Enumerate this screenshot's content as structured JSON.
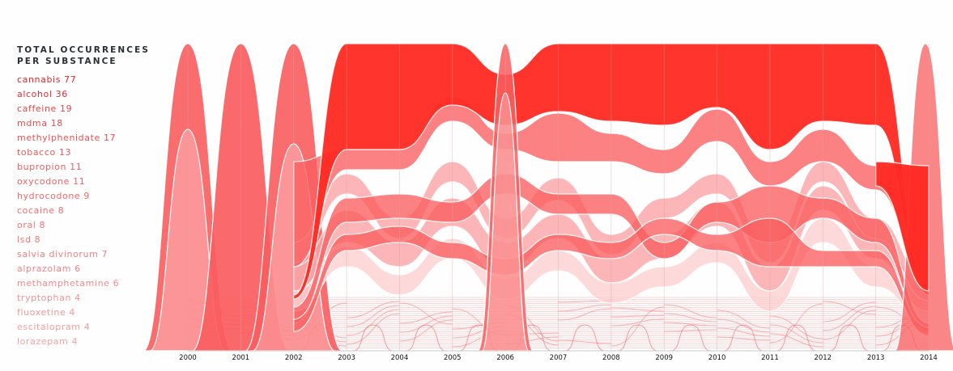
{
  "legend": {
    "title_line1": "TOTAL OCCURRENCES",
    "title_line2": "PER SUBSTANCE",
    "items": [
      {
        "label": "cannabis 77",
        "name": "cannabis",
        "count": 77,
        "color": "#e0282b"
      },
      {
        "label": "alcohol 36",
        "name": "alcohol",
        "count": 36,
        "color": "#e23134"
      },
      {
        "label": "caffeine 19",
        "name": "caffeine",
        "count": 19,
        "color": "#e4484b"
      },
      {
        "label": "mdma 18",
        "name": "mdma",
        "count": 18,
        "color": "#e54e51"
      },
      {
        "label": "methylphenidate 17",
        "name": "methylphenidate",
        "count": 17,
        "color": "#e65356"
      },
      {
        "label": "tobacco 13",
        "name": "tobacco",
        "count": 13,
        "color": "#e85b5e"
      },
      {
        "label": "bupropion 11",
        "name": "bupropion",
        "count": 11,
        "color": "#e96164"
      },
      {
        "label": "oxycodone 11",
        "name": "oxycodone",
        "count": 11,
        "color": "#ea6669"
      },
      {
        "label": "hydrocodone 9",
        "name": "hydrocodone",
        "count": 9,
        "color": "#eb6b6e"
      },
      {
        "label": "cocaine 8",
        "name": "cocaine",
        "count": 8,
        "color": "#ec7073"
      },
      {
        "label": "oral 8",
        "name": "oral",
        "count": 8,
        "color": "#ed7578"
      },
      {
        "label": "lsd 8",
        "name": "lsd",
        "count": 8,
        "color": "#ee7a7d"
      },
      {
        "label": "salvia divinorum 7",
        "name": "salvia divinorum",
        "count": 7,
        "color": "#ef8083"
      },
      {
        "label": "alprazolam 6",
        "name": "alprazolam",
        "count": 6,
        "color": "#f08588"
      },
      {
        "label": "methamphetamine 6",
        "name": "methamphetamine",
        "count": 6,
        "color": "#f08b8e"
      },
      {
        "label": "tryptophan 4",
        "name": "tryptophan",
        "count": 4,
        "color": "#f19295"
      },
      {
        "label": "fluoxetine 4",
        "name": "fluoxetine",
        "count": 4,
        "color": "#f2989b"
      },
      {
        "label": "escitalopram 4",
        "name": "escitalopram",
        "count": 4,
        "color": "#f39ea1"
      },
      {
        "label": "lorazepam 4",
        "name": "lorazepam",
        "count": 4,
        "color": "#f4a3a6"
      }
    ]
  },
  "axis": {
    "years": [
      "2000",
      "2001",
      "2002",
      "2003",
      "2004",
      "2005",
      "2006",
      "2007",
      "2008",
      "2009",
      "2010",
      "2011",
      "2012",
      "2013",
      "2014"
    ]
  },
  "colors": {
    "primary": "#ff2a22",
    "mid": "#fa5d5f",
    "light": "#fba4a6",
    "pale": "#fdd0d1",
    "grid": "#d9a3a6",
    "text_dark": "#2b2f36"
  },
  "chart_data": {
    "type": "area",
    "title": "Total occurrences per substance",
    "subtype": "streamgraph / bump ribbons by year",
    "x": [
      2000,
      2001,
      2002,
      2003,
      2004,
      2005,
      2006,
      2007,
      2008,
      2009,
      2010,
      2011,
      2012,
      2013,
      2014
    ],
    "xlabel": "",
    "ylabel": "",
    "legend_position": "left",
    "grid": "vertical lines at each year",
    "totals": {
      "cannabis": 77,
      "alcohol": 36,
      "caffeine": 19,
      "mdma": 18,
      "methylphenidate": 17,
      "tobacco": 13,
      "bupropion": 11,
      "oxycodone": 11,
      "hydrocodone": 9,
      "cocaine": 8,
      "oral": 8,
      "lsd": 8,
      "salvia divinorum": 7,
      "alprazolam": 6,
      "methamphetamine": 6,
      "tryptophan": 4,
      "fluoxetine": 4,
      "escitalopram": 4,
      "lorazepam": 4
    },
    "annotations": "Dominant top ribbon (cannabis) spans 2003-2013; individual spikes at 2000, 2001, 2002, 2006 and 2014"
  }
}
